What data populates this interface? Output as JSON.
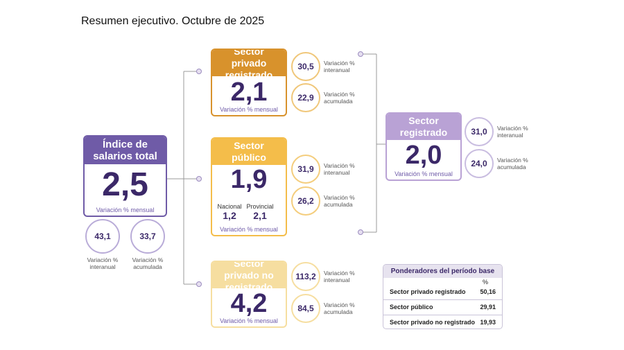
{
  "title": "Resumen ejecutivo. Octubre de 2025",
  "total": {
    "header": "Índice de salarios total",
    "value": "2,5",
    "caption": "Variación % mensual",
    "indicators": [
      {
        "value": "43,1",
        "label": "Variación % interanual"
      },
      {
        "value": "33,7",
        "label": "Variación % acumulada"
      }
    ]
  },
  "sectors": [
    {
      "header": "Sector privado registrado",
      "value": "2,1",
      "caption": "Variación % mensual",
      "indicators": [
        {
          "value": "30,5",
          "label": "Variación % interanual"
        },
        {
          "value": "22,9",
          "label": "Variación % acumulada"
        }
      ]
    },
    {
      "header": "Sector público",
      "value": "1,9",
      "caption": "Variación % mensual",
      "breakdown": [
        {
          "label": "Nacional",
          "value": "1,2"
        },
        {
          "label": "Provincial",
          "value": "2,1"
        }
      ],
      "indicators": [
        {
          "value": "31,9",
          "label": "Variación % interanual"
        },
        {
          "value": "26,2",
          "label": "Variación % acumulada"
        }
      ]
    },
    {
      "header": "Sector privado no registrado",
      "value": "4,2",
      "caption": "Variación % mensual",
      "indicators": [
        {
          "value": "113,2",
          "label": "Variación % interanual"
        },
        {
          "value": "84,5",
          "label": "Variación % acumulada"
        }
      ]
    }
  ],
  "registered": {
    "header": "Sector registrado",
    "value": "2,0",
    "caption": "Variación % mensual",
    "indicators": [
      {
        "value": "31,0",
        "label": "Variación % interanual"
      },
      {
        "value": "24,0",
        "label": "Variación % acumulada"
      }
    ]
  },
  "weights": {
    "title": "Ponderadores del período base",
    "unit": "%",
    "rows": [
      [
        "Sector privado registrado",
        "50,16"
      ],
      [
        "Sector público",
        "29,91"
      ],
      [
        "Sector privado no registrado",
        "19,93"
      ]
    ]
  }
}
